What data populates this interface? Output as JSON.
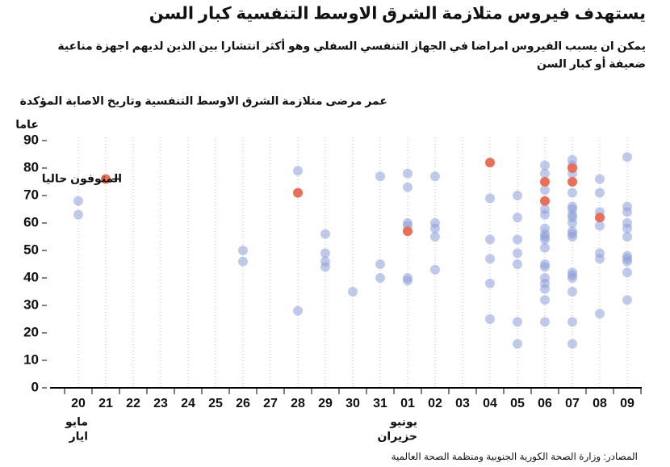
{
  "chart_data": {
    "type": "scatter",
    "title": "يستهدف فيروس متلازمة الشرق الاوسط التنفسية كبار السن",
    "subtitle": [
      "يمكن ان يسبب الفيروس امراضا في الجهاز التنفسي السفلي وهو أكثر انتشارا بين الذين لديهم اجهزة مناعية",
      "ضعيفة أو كبار السن"
    ],
    "chart_title": "عمر مرضى متلازمة الشرق الاوسط التنفسية وتاريخ الاصابة المؤكدة",
    "y_label": "عاما",
    "source": "المصادر: وزارة الصحة الكورية الجنوبية ومنظمة الصحة العالمية",
    "categories": [
      "20",
      "21",
      "22",
      "23",
      "24",
      "25",
      "26",
      "27",
      "28",
      "29",
      "30",
      "31",
      "01",
      "02",
      "03",
      "04",
      "05",
      "06",
      "07",
      "08",
      "09"
    ],
    "month_labels": [
      {
        "category": "20",
        "lines": [
          "مايو",
          "ايار"
        ]
      },
      {
        "category": "01",
        "lines": [
          "يونيو",
          "حزيران"
        ]
      }
    ],
    "ylim": [
      0,
      90
    ],
    "yticks": [
      0,
      10,
      20,
      30,
      40,
      50,
      60,
      70,
      80,
      90
    ],
    "series": [
      {
        "color": "#8c9fdb",
        "x": [
          "20",
          "20",
          "26",
          "26",
          "28",
          "28",
          "29",
          "29",
          "29",
          "29",
          "30",
          "31",
          "31",
          "31",
          "01",
          "01",
          "01",
          "01",
          "01",
          "01",
          "02",
          "02",
          "02",
          "02",
          "02",
          "04",
          "04",
          "04",
          "04",
          "04",
          "05",
          "05",
          "05",
          "05",
          "05",
          "05",
          "05",
          "06",
          "06",
          "06",
          "06",
          "06",
          "06",
          "06",
          "06",
          "06",
          "06",
          "06",
          "06",
          "06",
          "06",
          "06",
          "06",
          "06",
          "07",
          "07",
          "07",
          "07",
          "07",
          "07",
          "07",
          "07",
          "07",
          "07",
          "07",
          "07",
          "07",
          "07",
          "07",
          "07",
          "07",
          "07",
          "08",
          "08",
          "08",
          "08",
          "08",
          "08",
          "08",
          "09",
          "09",
          "09",
          "09",
          "09",
          "09",
          "09",
          "09",
          "09",
          "09",
          "09"
        ],
        "values": [
          68,
          63,
          50,
          46,
          79,
          28,
          56,
          49,
          46,
          44,
          35,
          77,
          45,
          40,
          78,
          73,
          60,
          59,
          40,
          39,
          77,
          60,
          58,
          55,
          43,
          69,
          54,
          47,
          38,
          25,
          70,
          62,
          54,
          49,
          45,
          24,
          16,
          81,
          78,
          72,
          65,
          63,
          58,
          56,
          55,
          54,
          51,
          45,
          44,
          40,
          38,
          36,
          32,
          24,
          83,
          81,
          78,
          71,
          66,
          65,
          63,
          62,
          60,
          57,
          56,
          55,
          42,
          41,
          40,
          35,
          24,
          16,
          76,
          71,
          64,
          59,
          49,
          47,
          27,
          84,
          66,
          64,
          60,
          58,
          55,
          48,
          47,
          46,
          42,
          32
        ]
      },
      {
        "name": "المتوفون حاليا",
        "color": "#e8705a",
        "x": [
          "28",
          "01",
          "04",
          "06",
          "06",
          "07",
          "07",
          "08"
        ],
        "values": [
          71,
          57,
          82,
          75,
          68,
          80,
          75,
          62
        ]
      }
    ]
  }
}
